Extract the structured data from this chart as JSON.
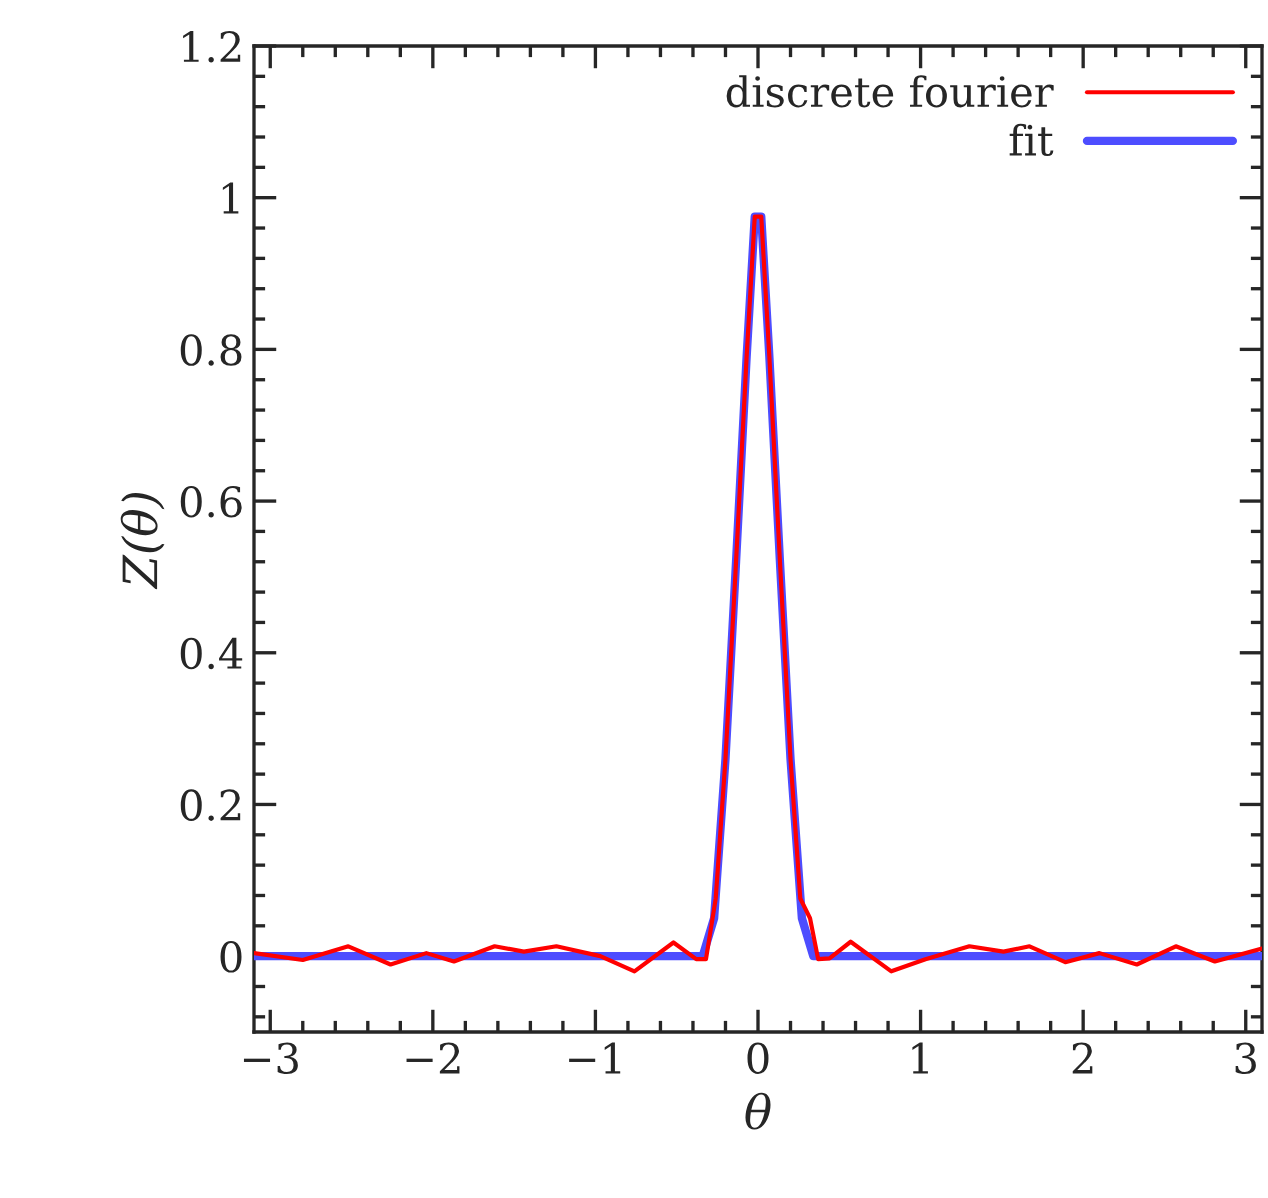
{
  "chart_data": {
    "type": "line",
    "xlabel": "θ",
    "ylabel": "Z(θ)",
    "xlim": [
      -3.1,
      3.1
    ],
    "ylim": [
      -0.1,
      1.2
    ],
    "xticks": [
      {
        "value": -3,
        "label": "−3"
      },
      {
        "value": -2,
        "label": "−2"
      },
      {
        "value": -1,
        "label": "−1"
      },
      0,
      1,
      2,
      3
    ],
    "yticks": [
      0,
      0.2,
      0.4,
      0.6,
      0.8,
      1,
      1.2
    ],
    "grid": false,
    "legend": "top right",
    "line_style": "solid",
    "marker": "none",
    "series": [
      {
        "name": "discrete fourier",
        "color": "#ff0000",
        "x": [
          -3.1,
          -2.8,
          -2.52,
          -2.26,
          -2.04,
          -1.87,
          -1.62,
          -1.44,
          -1.24,
          -0.97,
          -0.76,
          -0.52,
          -0.38,
          -0.32,
          -0.26,
          -0.2,
          -0.135,
          -0.07,
          -0.02,
          0.02,
          0.07,
          0.135,
          0.2,
          0.26,
          0.32,
          0.37,
          0.44,
          0.57,
          0.82,
          1.03,
          1.3,
          1.51,
          1.67,
          1.89,
          2.1,
          2.33,
          2.57,
          2.81,
          3.1
        ],
        "values": [
          0.004,
          -0.005,
          0.013,
          -0.011,
          0.004,
          -0.007,
          0.013,
          0.006,
          0.013,
          0.0,
          -0.02,
          0.018,
          -0.004,
          -0.004,
          0.076,
          0.26,
          0.52,
          0.79,
          0.975,
          0.975,
          0.79,
          0.52,
          0.26,
          0.076,
          0.05,
          -0.004,
          -0.003,
          0.019,
          -0.02,
          -0.004,
          0.013,
          0.006,
          0.013,
          -0.008,
          0.004,
          -0.011,
          0.013,
          -0.007,
          0.01
        ]
      },
      {
        "name": "fit",
        "color": "#4d4dff",
        "x": [
          -3.1,
          -0.34,
          -0.27,
          -0.2,
          -0.135,
          -0.07,
          -0.02,
          0.02,
          0.07,
          0.135,
          0.2,
          0.27,
          0.34,
          3.1
        ],
        "values": [
          0,
          0,
          0.05,
          0.26,
          0.52,
          0.79,
          0.975,
          0.975,
          0.79,
          0.52,
          0.26,
          0.05,
          0,
          0
        ]
      }
    ]
  }
}
